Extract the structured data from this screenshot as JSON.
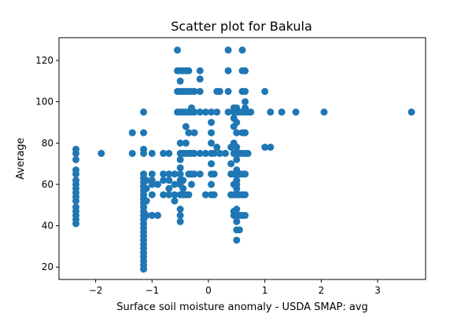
{
  "chart_data": {
    "type": "scatter",
    "title": "Scatter plot for Bakula",
    "xlabel": "Surface soil moisture anomaly  - USDA SMAP: avg",
    "ylabel": "Average",
    "xlim": [
      -2.65,
      3.85
    ],
    "ylim": [
      14,
      131
    ],
    "xticks": [
      -2,
      -1,
      0,
      1,
      2,
      3
    ],
    "yticks": [
      20,
      40,
      60,
      80,
      100,
      120
    ],
    "grid": false,
    "marker_color": "#1f77b4",
    "series": [
      {
        "points": [
          [
            -2.35,
            41
          ],
          [
            -2.35,
            43
          ],
          [
            -2.35,
            45
          ],
          [
            -2.35,
            47
          ],
          [
            -2.35,
            49
          ],
          [
            -2.35,
            52
          ],
          [
            -2.35,
            54
          ],
          [
            -2.35,
            56
          ],
          [
            -2.35,
            58
          ],
          [
            -2.35,
            60
          ],
          [
            -2.35,
            62
          ],
          [
            -2.35,
            65
          ],
          [
            -2.35,
            67
          ],
          [
            -2.35,
            72
          ],
          [
            -2.35,
            75
          ],
          [
            -2.35,
            77
          ],
          [
            -1.9,
            75
          ],
          [
            -1.35,
            75
          ],
          [
            -1.35,
            85
          ],
          [
            -1.15,
            19
          ],
          [
            -1.15,
            21
          ],
          [
            -1.15,
            23
          ],
          [
            -1.15,
            25
          ],
          [
            -1.15,
            27
          ],
          [
            -1.15,
            29
          ],
          [
            -1.15,
            31
          ],
          [
            -1.15,
            33
          ],
          [
            -1.15,
            35
          ],
          [
            -1.15,
            37
          ],
          [
            -1.15,
            39
          ],
          [
            -1.15,
            41
          ],
          [
            -1.15,
            43
          ],
          [
            -1.15,
            45
          ],
          [
            -1.15,
            47
          ],
          [
            -1.15,
            49
          ],
          [
            -1.15,
            51
          ],
          [
            -1.15,
            53
          ],
          [
            -1.15,
            55
          ],
          [
            -1.15,
            57
          ],
          [
            -1.15,
            59
          ],
          [
            -1.15,
            61
          ],
          [
            -1.15,
            63
          ],
          [
            -1.15,
            65
          ],
          [
            -1.15,
            75
          ],
          [
            -1.15,
            77
          ],
          [
            -1.15,
            85
          ],
          [
            -1.15,
            95
          ],
          [
            -1.1,
            45
          ],
          [
            -1.1,
            52
          ],
          [
            -1.1,
            58
          ],
          [
            -1.1,
            62
          ],
          [
            -1.0,
            45
          ],
          [
            -1.0,
            55
          ],
          [
            -1.0,
            60
          ],
          [
            -1.0,
            62
          ],
          [
            -1.0,
            65
          ],
          [
            -1.0,
            75
          ],
          [
            -0.9,
            45
          ],
          [
            -0.9,
            60
          ],
          [
            -0.8,
            55
          ],
          [
            -0.8,
            62
          ],
          [
            -0.8,
            65
          ],
          [
            -0.8,
            75
          ],
          [
            -0.7,
            55
          ],
          [
            -0.7,
            58
          ],
          [
            -0.7,
            62
          ],
          [
            -0.7,
            65
          ],
          [
            -0.7,
            75
          ],
          [
            -0.6,
            52
          ],
          [
            -0.6,
            55
          ],
          [
            -0.6,
            60
          ],
          [
            -0.6,
            65
          ],
          [
            -0.55,
            95
          ],
          [
            -0.55,
            105
          ],
          [
            -0.55,
            115
          ],
          [
            -0.55,
            125
          ],
          [
            -0.5,
            42
          ],
          [
            -0.5,
            45
          ],
          [
            -0.5,
            48
          ],
          [
            -0.5,
            55
          ],
          [
            -0.5,
            60
          ],
          [
            -0.5,
            62
          ],
          [
            -0.5,
            65
          ],
          [
            -0.5,
            68
          ],
          [
            -0.5,
            72
          ],
          [
            -0.5,
            75
          ],
          [
            -0.5,
            80
          ],
          [
            -0.5,
            95
          ],
          [
            -0.5,
            105
          ],
          [
            -0.5,
            110
          ],
          [
            -0.5,
            115
          ],
          [
            -0.45,
            55
          ],
          [
            -0.45,
            58
          ],
          [
            -0.45,
            62
          ],
          [
            -0.45,
            75
          ],
          [
            -0.45,
            95
          ],
          [
            -0.45,
            105
          ],
          [
            -0.45,
            115
          ],
          [
            -0.4,
            55
          ],
          [
            -0.4,
            75
          ],
          [
            -0.4,
            80
          ],
          [
            -0.4,
            88
          ],
          [
            -0.4,
            95
          ],
          [
            -0.4,
            105
          ],
          [
            -0.4,
            115
          ],
          [
            -0.35,
            55
          ],
          [
            -0.35,
            65
          ],
          [
            -0.35,
            75
          ],
          [
            -0.35,
            85
          ],
          [
            -0.35,
            95
          ],
          [
            -0.35,
            105
          ],
          [
            -0.35,
            115
          ],
          [
            -0.3,
            60
          ],
          [
            -0.3,
            65
          ],
          [
            -0.3,
            75
          ],
          [
            -0.3,
            95
          ],
          [
            -0.3,
            97
          ],
          [
            -0.3,
            105
          ],
          [
            -0.25,
            65
          ],
          [
            -0.25,
            75
          ],
          [
            -0.25,
            85
          ],
          [
            -0.25,
            95
          ],
          [
            -0.25,
            105
          ],
          [
            -0.15,
            65
          ],
          [
            -0.15,
            75
          ],
          [
            -0.15,
            95
          ],
          [
            -0.15,
            105
          ],
          [
            -0.15,
            111
          ],
          [
            -0.15,
            115
          ],
          [
            -0.05,
            55
          ],
          [
            -0.05,
            75
          ],
          [
            -0.05,
            95
          ],
          [
            0.05,
            55
          ],
          [
            0.05,
            60
          ],
          [
            0.05,
            65
          ],
          [
            0.05,
            70
          ],
          [
            0.05,
            75
          ],
          [
            0.05,
            80
          ],
          [
            0.05,
            85
          ],
          [
            0.05,
            90
          ],
          [
            0.05,
            95
          ],
          [
            0.1,
            55
          ],
          [
            0.1,
            65
          ],
          [
            0.1,
            75
          ],
          [
            0.15,
            78
          ],
          [
            0.15,
            95
          ],
          [
            0.15,
            105
          ],
          [
            0.2,
            75
          ],
          [
            0.2,
            105
          ],
          [
            0.3,
            75
          ],
          [
            0.35,
            95
          ],
          [
            0.35,
            105
          ],
          [
            0.35,
            115
          ],
          [
            0.35,
            125
          ],
          [
            0.4,
            55
          ],
          [
            0.4,
            65
          ],
          [
            0.4,
            70
          ],
          [
            0.4,
            78
          ],
          [
            0.45,
            45
          ],
          [
            0.45,
            47
          ],
          [
            0.45,
            55
          ],
          [
            0.45,
            60
          ],
          [
            0.45,
            65
          ],
          [
            0.45,
            75
          ],
          [
            0.45,
            80
          ],
          [
            0.45,
            88
          ],
          [
            0.45,
            92
          ],
          [
            0.45,
            95
          ],
          [
            0.45,
            97
          ],
          [
            0.5,
            33
          ],
          [
            0.5,
            38
          ],
          [
            0.5,
            42
          ],
          [
            0.5,
            45
          ],
          [
            0.5,
            48
          ],
          [
            0.5,
            55
          ],
          [
            0.5,
            58
          ],
          [
            0.5,
            60
          ],
          [
            0.5,
            62
          ],
          [
            0.5,
            65
          ],
          [
            0.5,
            67
          ],
          [
            0.5,
            72
          ],
          [
            0.5,
            75
          ],
          [
            0.5,
            78
          ],
          [
            0.5,
            85
          ],
          [
            0.5,
            90
          ],
          [
            0.5,
            95
          ],
          [
            0.5,
            97
          ],
          [
            0.55,
            38
          ],
          [
            0.55,
            45
          ],
          [
            0.55,
            55
          ],
          [
            0.55,
            65
          ],
          [
            0.55,
            75
          ],
          [
            0.55,
            95
          ],
          [
            0.6,
            45
          ],
          [
            0.6,
            55
          ],
          [
            0.6,
            65
          ],
          [
            0.6,
            75
          ],
          [
            0.6,
            85
          ],
          [
            0.6,
            95
          ],
          [
            0.6,
            105
          ],
          [
            0.6,
            115
          ],
          [
            0.6,
            125
          ],
          [
            0.65,
            45
          ],
          [
            0.65,
            55
          ],
          [
            0.65,
            65
          ],
          [
            0.65,
            75
          ],
          [
            0.65,
            85
          ],
          [
            0.65,
            95
          ],
          [
            0.65,
            97
          ],
          [
            0.65,
            100
          ],
          [
            0.65,
            105
          ],
          [
            0.65,
            115
          ],
          [
            0.7,
            75
          ],
          [
            0.7,
            95
          ],
          [
            0.75,
            95
          ],
          [
            1.0,
            78
          ],
          [
            1.0,
            105
          ],
          [
            1.1,
            78
          ],
          [
            1.1,
            95
          ],
          [
            1.3,
            95
          ],
          [
            1.55,
            95
          ],
          [
            2.05,
            95
          ],
          [
            3.6,
            95
          ]
        ]
      }
    ]
  }
}
